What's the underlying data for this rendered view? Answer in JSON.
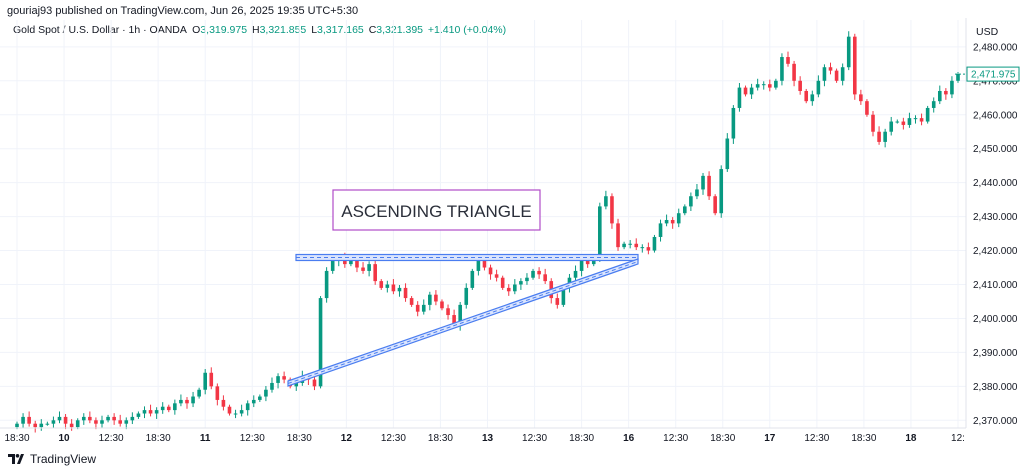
{
  "header": {
    "publisher": "gouriaj93 published on TradingView.com, Jun 26, 2025 19:35 UTC+5:30",
    "symbol": "Gold Spot / U.S. Dollar · 1h · OANDA",
    "ohlc": {
      "o_label": "O",
      "o_value": "3,319.975",
      "h_label": "H",
      "h_value": "3,321.855",
      "l_label": "L",
      "l_value": "3,317.165",
      "c_label": "C",
      "c_value": "3,321.395",
      "change": "+1.410 (+0.04%)"
    },
    "currency": "USD"
  },
  "footer": {
    "brand": "TradingView"
  },
  "annotation": {
    "text": "ASCENDING TRIANGLE"
  },
  "colors": {
    "up": "#089981",
    "down": "#f23645",
    "pattern": "#4a7df0",
    "annotation_border": "#b04cc8",
    "grid": "#f0f3fa",
    "axis_text": "#131722"
  },
  "chart_data": {
    "type": "candlestick",
    "y_axis": {
      "ticks": [
        2370,
        2380,
        2390,
        2400,
        2410,
        2420,
        2430,
        2440,
        2450,
        2460,
        2470,
        2480
      ],
      "tick_labels": [
        "2,370.000",
        "2,380.000",
        "2,390.000",
        "2,400.000",
        "2,410.000",
        "2,420.000",
        "2,430.000",
        "2,440.000",
        "2,450.000",
        "2,460.000",
        "2,470.000",
        "2,480.000"
      ],
      "ylim": [
        2366,
        2486
      ],
      "side": "right"
    },
    "x_axis": {
      "tick_labels": [
        "18:30",
        "10",
        "12:30",
        "18:30",
        "11",
        "12:30",
        "18:30",
        "12",
        "12:30",
        "18:30",
        "13",
        "12:30",
        "18:30",
        "16",
        "12:30",
        "18:30",
        "17",
        "12:30",
        "18:30",
        "18",
        "12:"
      ],
      "tick_bold": [
        false,
        true,
        false,
        false,
        true,
        false,
        false,
        true,
        false,
        false,
        true,
        false,
        false,
        true,
        false,
        false,
        true,
        false,
        false,
        true,
        false
      ]
    },
    "last_price": {
      "value": 2471.975,
      "label": "2,471.975"
    },
    "closes": [
      2369,
      2371,
      2369,
      2368,
      2369,
      2369,
      2370,
      2371,
      2369,
      2368,
      2370,
      2371,
      2370,
      2369,
      2370,
      2371,
      2370,
      2369,
      2370,
      2371,
      2372,
      2373,
      2372,
      2373,
      2374,
      2373,
      2375,
      2376,
      2375,
      2377,
      2379,
      2384,
      2380,
      2376,
      2374,
      2372,
      2372,
      2373,
      2375,
      2376,
      2377,
      2379,
      2381,
      2383,
      2382,
      2380,
      2381,
      2383,
      2382,
      2380,
      2406,
      2414,
      2417,
      2418,
      2416,
      2417,
      2415,
      2414,
      2416,
      2411,
      2409,
      2410,
      2408,
      2409,
      2406,
      2404,
      2402,
      2404,
      2407,
      2405,
      2403,
      2401,
      2398,
      2404,
      2409,
      2414,
      2417,
      2415,
      2413,
      2412,
      2409,
      2408,
      2410,
      2411,
      2412,
      2414,
      2413,
      2411,
      2406,
      2404,
      2409,
      2412,
      2414,
      2417,
      2416,
      2418,
      2433,
      2436,
      2428,
      2421,
      2422,
      2422,
      2421,
      2421,
      2420,
      2424,
      2428,
      2429,
      2428,
      2431,
      2433,
      2436,
      2438,
      2442,
      2436,
      2431,
      2444,
      2453,
      2462,
      2468,
      2466,
      2468,
      2469,
      2469,
      2468,
      2470,
      2477,
      2475,
      2470,
      2467,
      2464,
      2466,
      2470,
      2474,
      2473,
      2470,
      2474,
      2483,
      2466,
      2464,
      2460,
      2455,
      2452,
      2455,
      2458,
      2458,
      2457,
      2459,
      2459,
      2458,
      2462,
      2464,
      2467,
      2466,
      2470,
      2472
    ]
  }
}
